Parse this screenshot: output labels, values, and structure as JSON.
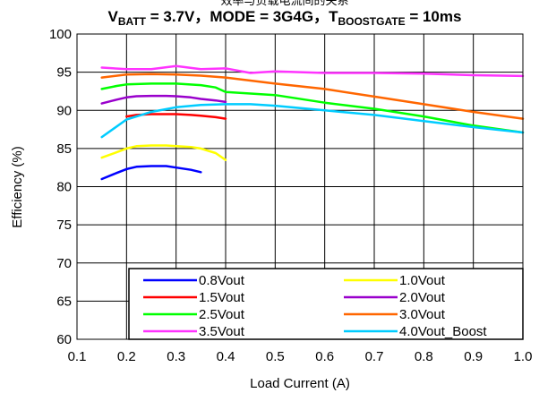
{
  "chart_data": {
    "type": "line",
    "title_top": "效率与负载电流间的关系",
    "title_parts": [
      {
        "text": "V",
        "sub": false
      },
      {
        "text": "BATT",
        "sub": true
      },
      {
        "text": " = 3.7V，MODE = 3G4G，T",
        "sub": false
      },
      {
        "text": "BOOSTGATE",
        "sub": true
      },
      {
        "text": " = 10ms",
        "sub": false
      }
    ],
    "xlabel": "Load Current (A)",
    "ylabel": "Efficiency (%)",
    "xlim": [
      0.1,
      1.0
    ],
    "ylim": [
      60,
      100
    ],
    "xticks": [
      "0.1",
      "0.2",
      "0.3",
      "0.4",
      "0.5",
      "0.6",
      "0.7",
      "0.8",
      "0.9",
      "1.0"
    ],
    "yticks": [
      "60",
      "65",
      "70",
      "75",
      "80",
      "85",
      "90",
      "95",
      "100"
    ],
    "grid": true,
    "legend_position": "bottom-right",
    "series": [
      {
        "name": "0.8Vout",
        "color": "#0000ff",
        "x": [
          0.15,
          0.18,
          0.2,
          0.22,
          0.25,
          0.28,
          0.3,
          0.33,
          0.35
        ],
        "y": [
          81.0,
          81.8,
          82.3,
          82.6,
          82.7,
          82.7,
          82.5,
          82.2,
          81.9
        ]
      },
      {
        "name": "1.0Vout",
        "color": "#ffff00",
        "x": [
          0.15,
          0.18,
          0.2,
          0.22,
          0.25,
          0.28,
          0.3,
          0.33,
          0.35,
          0.38,
          0.4
        ],
        "y": [
          83.8,
          84.5,
          85.0,
          85.3,
          85.4,
          85.4,
          85.3,
          85.2,
          85.0,
          84.4,
          83.5
        ]
      },
      {
        "name": "1.5Vout",
        "color": "#ff0000",
        "x": [
          0.2,
          0.22,
          0.25,
          0.28,
          0.3,
          0.33,
          0.35,
          0.38,
          0.4
        ],
        "y": [
          89.2,
          89.4,
          89.5,
          89.5,
          89.5,
          89.4,
          89.3,
          89.1,
          88.9
        ]
      },
      {
        "name": "2.0Vout",
        "color": "#9900cc",
        "x": [
          0.15,
          0.18,
          0.2,
          0.22,
          0.25,
          0.28,
          0.3,
          0.33,
          0.35,
          0.38,
          0.4
        ],
        "y": [
          90.9,
          91.4,
          91.7,
          91.85,
          91.9,
          91.9,
          91.85,
          91.7,
          91.5,
          91.3,
          91.1
        ]
      },
      {
        "name": "2.5Vout",
        "color": "#00ff00",
        "x": [
          0.15,
          0.18,
          0.2,
          0.25,
          0.3,
          0.35,
          0.38,
          0.4,
          0.45,
          0.5,
          0.6,
          0.7,
          0.8,
          0.9,
          1.0
        ],
        "y": [
          92.8,
          93.2,
          93.4,
          93.5,
          93.5,
          93.3,
          93.0,
          92.4,
          92.2,
          92.0,
          91.0,
          90.2,
          89.2,
          88.0,
          87.1
        ]
      },
      {
        "name": "3.0Vout",
        "color": "#ff6600",
        "x": [
          0.15,
          0.2,
          0.25,
          0.3,
          0.35,
          0.4,
          0.45,
          0.5,
          0.6,
          0.7,
          0.8,
          0.9,
          1.0
        ],
        "y": [
          94.3,
          94.7,
          94.75,
          94.7,
          94.55,
          94.3,
          93.9,
          93.5,
          92.8,
          91.8,
          90.8,
          89.8,
          88.9
        ]
      },
      {
        "name": "3.5Vout",
        "color": "#ff33ff",
        "x": [
          0.15,
          0.2,
          0.25,
          0.3,
          0.35,
          0.4,
          0.45,
          0.5,
          0.6,
          0.7,
          0.8,
          0.9,
          1.0
        ],
        "y": [
          95.6,
          95.4,
          95.4,
          95.8,
          95.4,
          95.5,
          94.9,
          95.1,
          94.9,
          94.9,
          94.8,
          94.6,
          94.5
        ]
      },
      {
        "name": "4.0Vout_Boost",
        "color": "#00ccff",
        "x": [
          0.15,
          0.2,
          0.25,
          0.3,
          0.35,
          0.4,
          0.45,
          0.5,
          0.6,
          0.7,
          0.8,
          0.9,
          1.0
        ],
        "y": [
          86.5,
          88.8,
          89.8,
          90.4,
          90.7,
          90.8,
          90.8,
          90.6,
          90.0,
          89.4,
          88.6,
          87.8,
          87.1
        ]
      }
    ]
  }
}
